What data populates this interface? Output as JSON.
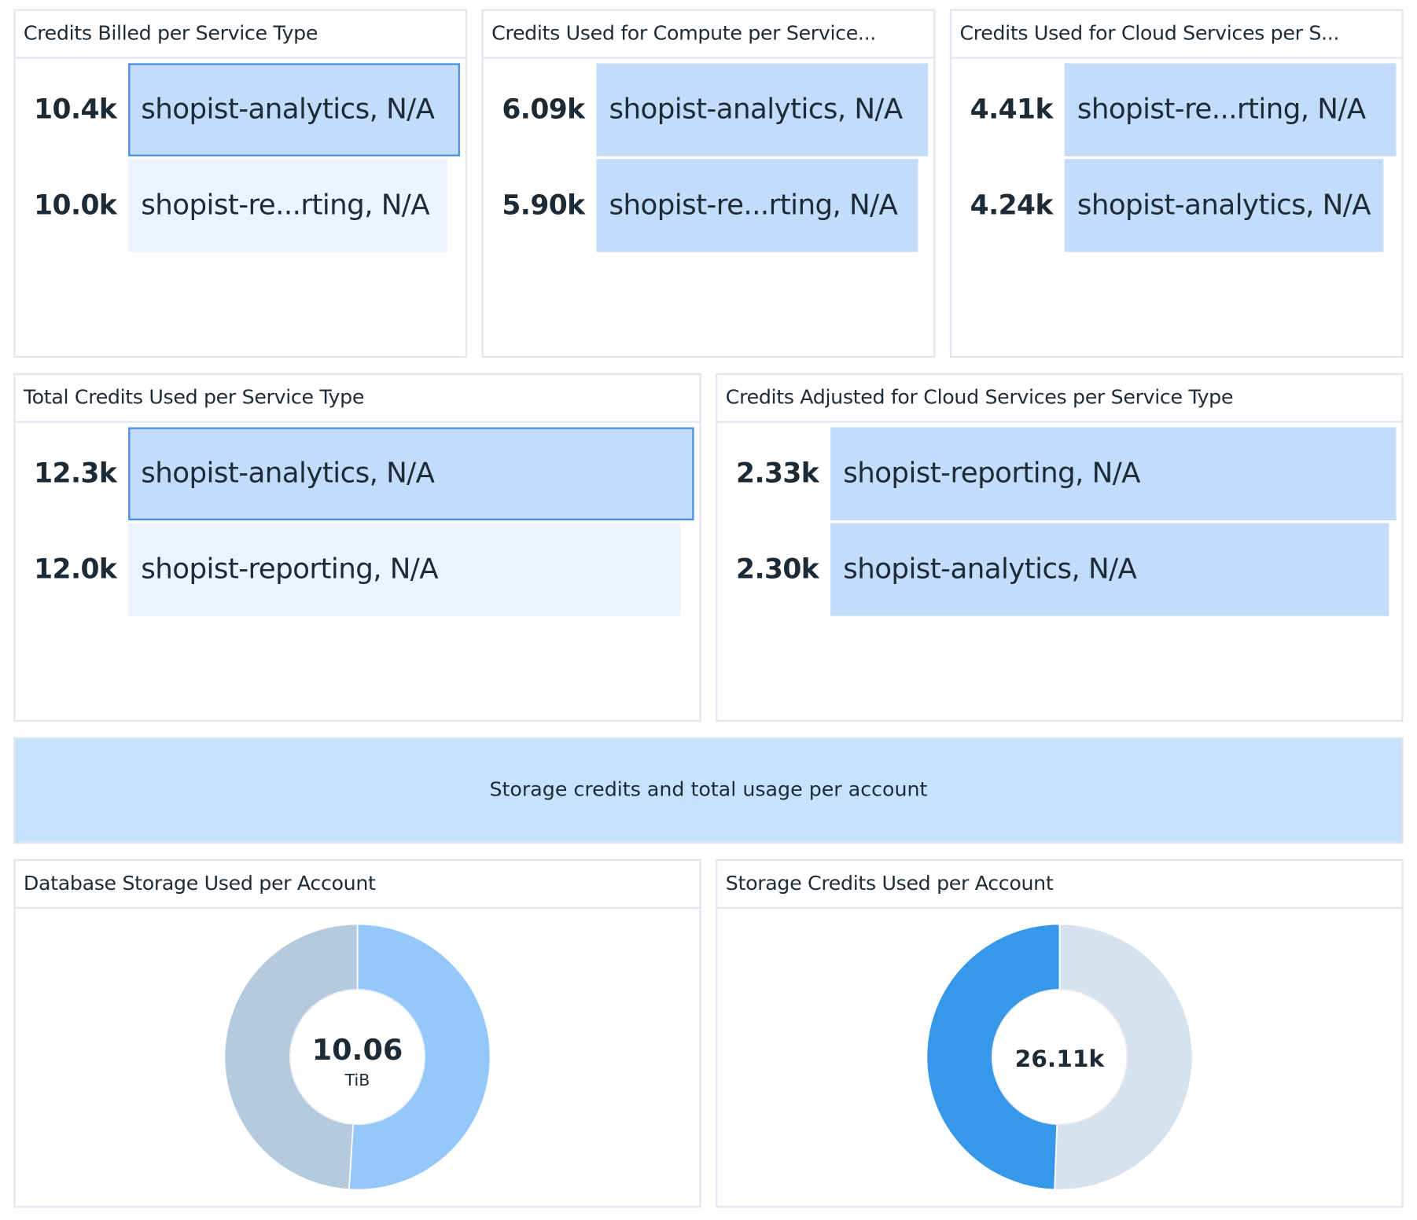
{
  "colors": {
    "bar_primary": "#c3dcfb",
    "bar_faded": "#ebf3fe",
    "bar_highlight_border": "#4a90e2",
    "banner_bg": "#c6e2fd"
  },
  "panels": [
    {
      "title": "Credits Billed per Service Type",
      "highlighted": 0,
      "bars": [
        {
          "value_label": "10.4k",
          "value": 10.4,
          "label": "shopist-analytics, N/A"
        },
        {
          "value_label": "10.0k",
          "value": 10.0,
          "label": "shopist-re...rting, N/A",
          "faded": true
        }
      ]
    },
    {
      "title": "Credits Used for Compute per Service...",
      "bars": [
        {
          "value_label": "6.09k",
          "value": 6.09,
          "label": "shopist-analytics, N/A"
        },
        {
          "value_label": "5.90k",
          "value": 5.9,
          "label": "shopist-re...rting, N/A"
        }
      ]
    },
    {
      "title": "Credits Used for Cloud Services per S...",
      "bars": [
        {
          "value_label": "4.41k",
          "value": 4.41,
          "label": "shopist-re...rting, N/A"
        },
        {
          "value_label": "4.24k",
          "value": 4.24,
          "label": "shopist-analytics, N/A"
        }
      ]
    },
    {
      "title": "Total Credits Used per Service Type",
      "highlighted": 0,
      "bars": [
        {
          "value_label": "12.3k",
          "value": 12.3,
          "label": "shopist-analytics, N/A"
        },
        {
          "value_label": "12.0k",
          "value": 12.0,
          "label": "shopist-reporting, N/A",
          "faded": true
        }
      ]
    },
    {
      "title": "Credits Adjusted for Cloud Services per Service Type",
      "bars": [
        {
          "value_label": "2.33k",
          "value": 2.33,
          "label": "shopist-reporting, N/A"
        },
        {
          "value_label": "2.30k",
          "value": 2.3,
          "label": "shopist-analytics, N/A"
        }
      ]
    }
  ],
  "banner": {
    "text": "Storage credits and total usage per account"
  },
  "donuts": [
    {
      "title": "Database Storage Used per Account",
      "center_value": "10.06",
      "center_unit": "TiB",
      "slices": [
        {
          "share": 0.51,
          "color": "#94c8fd"
        },
        {
          "share": 0.49,
          "color": "#b5c9df"
        }
      ]
    },
    {
      "title": "Storage Credits Used per Account",
      "center_value": "26.11k",
      "center_unit": "",
      "slices": [
        {
          "share": 0.506,
          "color": "#d6e3ef"
        },
        {
          "share": 0.494,
          "color": "#3798ea"
        }
      ]
    }
  ]
}
